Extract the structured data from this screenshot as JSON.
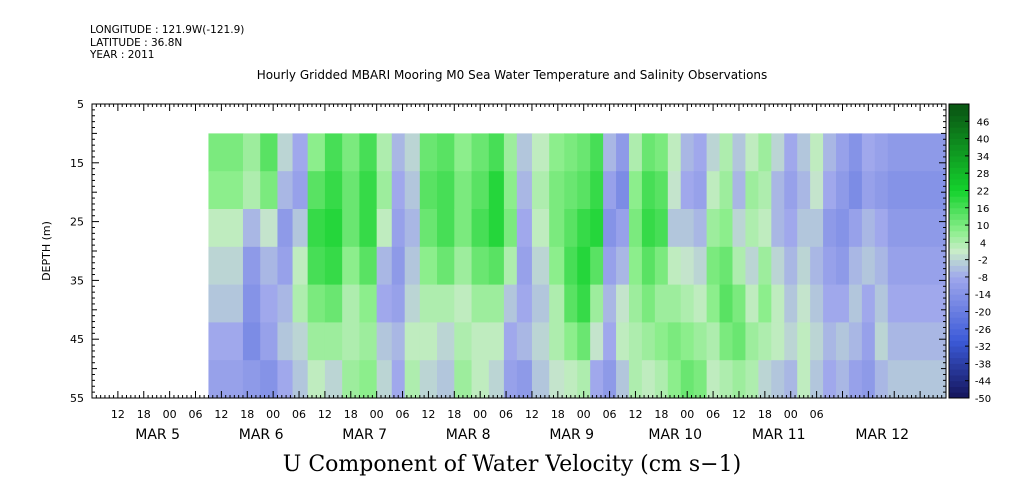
{
  "header": {
    "longitude": "LONGITUDE : 121.9W(-121.9)",
    "latitude": "LATITUDE : 36.8N",
    "year": "YEAR : 2011"
  },
  "chart_data": {
    "type": "heatmap",
    "title": "Hourly Gridded MBARI Mooring M0 Sea Water Temperature and Salinity Observations",
    "xlabel": "U Component of Water Velocity (cm s−1)",
    "ylabel": "DEPTH (m)",
    "x_start": "2011-03-04T06:00",
    "x_end": "2011-03-12T12:00",
    "data_start": "2011-03-05T09:00",
    "data_end": "2011-03-12T12:00",
    "y_range": [
      5,
      55
    ],
    "y_inverted": true,
    "data_depth_range": [
      10,
      55
    ],
    "y_ticks": [
      5,
      15,
      25,
      35,
      45,
      55
    ],
    "x_hour_labels": [
      "12",
      "18",
      "00",
      "06",
      "12",
      "18",
      "00",
      "06",
      "12",
      "18",
      "00",
      "06",
      "12",
      "18",
      "00",
      "06",
      "12",
      "18",
      "00",
      "06",
      "12",
      "18",
      "00",
      "06",
      "12",
      "18",
      "00",
      "06"
    ],
    "x_day_labels": [
      "MAR 5",
      "MAR 6",
      "MAR 7",
      "MAR 8",
      "MAR 9",
      "MAR 10",
      "MAR 11",
      "MAR 12"
    ],
    "colorbar_labels": [
      "46",
      "40",
      "34",
      "28",
      "22",
      "16",
      "10",
      "4",
      "-2",
      "-8",
      "-14",
      "-20",
      "-26",
      "-32",
      "-38",
      "-44",
      "-50"
    ],
    "colorbar_range": [
      -50,
      52
    ],
    "palette": {
      "strong_negative": "#14145a",
      "negative": "#3c5ad8",
      "weak_negative": "#a0a8ec",
      "neutral": "#c8ecc8",
      "weak_positive": "#8cee8c",
      "positive": "#14d22d",
      "strong_positive": "#0a5a14"
    },
    "velocity_field": [
      {
        "hour": 33,
        "values": [
          10,
          8,
          2,
          -2,
          -4,
          -8,
          -10
        ]
      },
      {
        "hour": 37,
        "values": [
          6,
          4,
          -6,
          -12,
          -14,
          -16,
          -12
        ]
      },
      {
        "hour": 41,
        "values": [
          14,
          10,
          0,
          -6,
          -8,
          -10,
          -14
        ]
      },
      {
        "hour": 45,
        "values": [
          -2,
          -6,
          -12,
          -10,
          -6,
          -4,
          -8
        ]
      },
      {
        "hour": 48,
        "values": [
          -8,
          -10,
          -4,
          2,
          4,
          -2,
          -4
        ]
      },
      {
        "hour": 52,
        "values": [
          8,
          14,
          18,
          16,
          10,
          6,
          2
        ]
      },
      {
        "hour": 56,
        "values": [
          16,
          18,
          20,
          18,
          12,
          6,
          -2
        ]
      },
      {
        "hour": 60,
        "values": [
          10,
          12,
          12,
          8,
          4,
          4,
          6
        ]
      },
      {
        "hour": 64,
        "values": [
          16,
          18,
          18,
          14,
          8,
          6,
          8
        ]
      },
      {
        "hour": 68,
        "values": [
          4,
          6,
          2,
          -6,
          -8,
          -4,
          -2
        ]
      },
      {
        "hour": 71,
        "values": [
          -6,
          -8,
          -10,
          -12,
          -10,
          -6,
          -8
        ]
      },
      {
        "hour": 74,
        "values": [
          -2,
          -4,
          -6,
          -4,
          -2,
          2,
          4
        ]
      },
      {
        "hour": 78,
        "values": [
          12,
          14,
          12,
          8,
          4,
          2,
          -2
        ]
      },
      {
        "hour": 82,
        "values": [
          14,
          16,
          16,
          12,
          4,
          -2,
          -4
        ]
      },
      {
        "hour": 86,
        "values": [
          8,
          10,
          10,
          6,
          2,
          4,
          6
        ]
      },
      {
        "hour": 90,
        "values": [
          12,
          14,
          16,
          12,
          6,
          2,
          2
        ]
      },
      {
        "hour": 94,
        "values": [
          16,
          20,
          20,
          14,
          6,
          2,
          -2
        ]
      },
      {
        "hour": 97,
        "values": [
          6,
          8,
          10,
          4,
          -4,
          -8,
          -10
        ]
      },
      {
        "hour": 100,
        "values": [
          -4,
          -6,
          -8,
          -10,
          -8,
          -6,
          -12
        ]
      },
      {
        "hour": 104,
        "values": [
          2,
          4,
          2,
          -2,
          -4,
          -2,
          -4
        ]
      },
      {
        "hour": 108,
        "values": [
          8,
          10,
          10,
          8,
          4,
          4,
          0
        ]
      },
      {
        "hour": 111,
        "values": [
          10,
          12,
          14,
          16,
          14,
          8,
          2
        ]
      },
      {
        "hour": 114,
        "values": [
          12,
          14,
          18,
          20,
          18,
          12,
          4
        ]
      },
      {
        "hour": 117,
        "values": [
          16,
          18,
          20,
          14,
          6,
          0,
          -8
        ]
      },
      {
        "hour": 120,
        "values": [
          -6,
          -10,
          -14,
          -10,
          -6,
          -8,
          -12
        ]
      },
      {
        "hour": 123,
        "values": [
          -12,
          -16,
          -10,
          -6,
          0,
          2,
          -4
        ]
      },
      {
        "hour": 126,
        "values": [
          4,
          8,
          10,
          8,
          6,
          4,
          4
        ]
      },
      {
        "hour": 129,
        "values": [
          12,
          16,
          18,
          14,
          10,
          6,
          2
        ]
      },
      {
        "hour": 132,
        "values": [
          10,
          14,
          16,
          10,
          6,
          8,
          4
        ]
      },
      {
        "hour": 135,
        "values": [
          2,
          0,
          -4,
          2,
          6,
          10,
          8
        ]
      },
      {
        "hour": 138,
        "values": [
          -6,
          -8,
          -4,
          0,
          4,
          8,
          12
        ]
      },
      {
        "hour": 141,
        "values": [
          -8,
          -10,
          -6,
          -2,
          2,
          6,
          10
        ]
      },
      {
        "hour": 144,
        "values": [
          -2,
          2,
          6,
          10,
          8,
          4,
          2
        ]
      },
      {
        "hour": 147,
        "values": [
          4,
          6,
          8,
          12,
          14,
          10,
          4
        ]
      },
      {
        "hour": 150,
        "values": [
          -4,
          -6,
          -2,
          4,
          10,
          12,
          6
        ]
      },
      {
        "hour": 153,
        "values": [
          2,
          6,
          4,
          -2,
          2,
          6,
          4
        ]
      },
      {
        "hour": 156,
        "values": [
          6,
          4,
          2,
          6,
          8,
          4,
          -2
        ]
      },
      {
        "hour": 159,
        "values": [
          -2,
          -6,
          -6,
          -2,
          2,
          2,
          -4
        ]
      },
      {
        "hour": 162,
        "values": [
          -8,
          -10,
          -8,
          -6,
          -4,
          -2,
          -6
        ]
      },
      {
        "hour": 165,
        "values": [
          -4,
          -6,
          -4,
          -2,
          0,
          2,
          2
        ]
      },
      {
        "hour": 168,
        "values": [
          2,
          0,
          -4,
          -6,
          -4,
          -2,
          -4
        ]
      },
      {
        "hour": 171,
        "values": [
          -6,
          -8,
          -12,
          -10,
          -8,
          -6,
          -8
        ]
      },
      {
        "hour": 174,
        "values": [
          -10,
          -12,
          -14,
          -12,
          -8,
          -4,
          -6
        ]
      },
      {
        "hour": 177,
        "values": [
          -14,
          -16,
          -10,
          -6,
          -4,
          -6,
          -10
        ]
      },
      {
        "hour": 180,
        "values": [
          -8,
          -10,
          -6,
          -4,
          -8,
          -10,
          -12
        ]
      },
      {
        "hour": 183,
        "values": [
          -10,
          -12,
          -8,
          -6,
          -4,
          -2,
          -6
        ]
      },
      {
        "hour": 186,
        "values": [
          -12,
          -14,
          -12,
          -10,
          -8,
          -6,
          -4
        ]
      }
    ]
  }
}
